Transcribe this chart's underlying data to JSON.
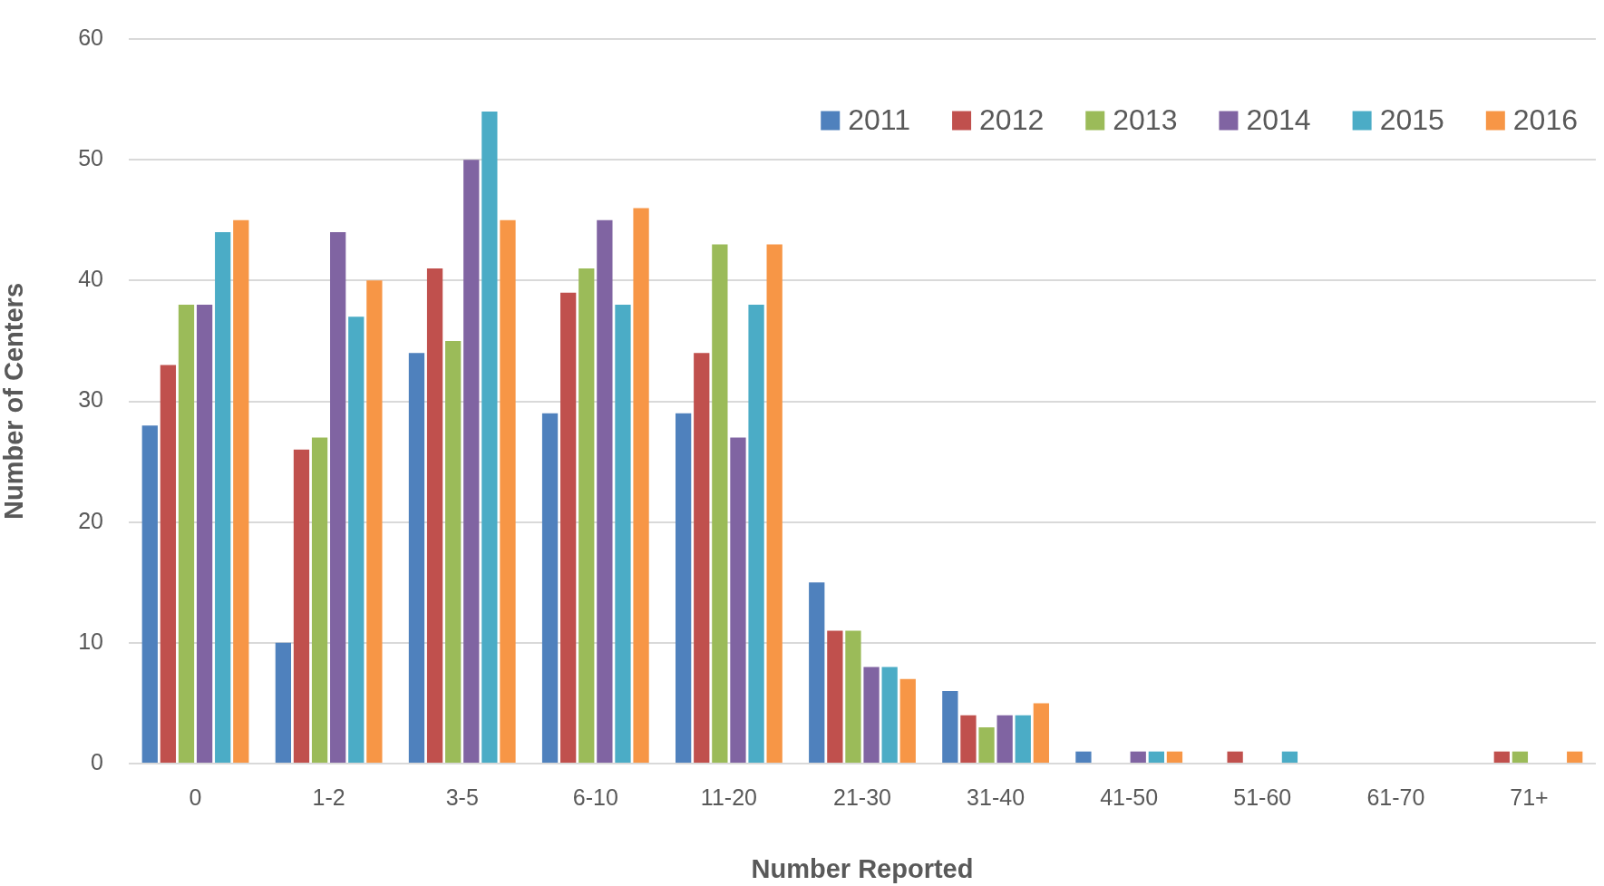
{
  "chart_data": {
    "type": "bar",
    "xlabel": "Number Reported",
    "ylabel": "Number of Centers",
    "categories": [
      "0",
      "1-2",
      "3-5",
      "6-10",
      "11-20",
      "21-30",
      "31-40",
      "41-50",
      "51-60",
      "61-70",
      "71+"
    ],
    "series": [
      {
        "name": "2011",
        "color": "#4f81bd",
        "values": [
          28,
          10,
          34,
          29,
          29,
          15,
          6,
          1,
          0,
          0,
          0
        ]
      },
      {
        "name": "2012",
        "color": "#c0504d",
        "values": [
          33,
          26,
          41,
          39,
          34,
          11,
          4,
          0,
          1,
          0,
          1
        ]
      },
      {
        "name": "2013",
        "color": "#9bbb59",
        "values": [
          38,
          27,
          35,
          41,
          43,
          11,
          3,
          0,
          0,
          0,
          1
        ]
      },
      {
        "name": "2014",
        "color": "#8064a2",
        "values": [
          38,
          44,
          50,
          45,
          27,
          8,
          4,
          1,
          0,
          0,
          0
        ]
      },
      {
        "name": "2015",
        "color": "#4bacc6",
        "values": [
          44,
          37,
          54,
          38,
          38,
          8,
          4,
          1,
          1,
          0,
          0
        ]
      },
      {
        "name": "2016",
        "color": "#f79646",
        "values": [
          45,
          40,
          45,
          46,
          43,
          7,
          5,
          1,
          0,
          0,
          1
        ]
      }
    ],
    "ylim": [
      0,
      60
    ],
    "yticks": [
      0,
      10,
      20,
      30,
      40,
      50,
      60
    ],
    "grid": "y",
    "legend": "top right"
  }
}
